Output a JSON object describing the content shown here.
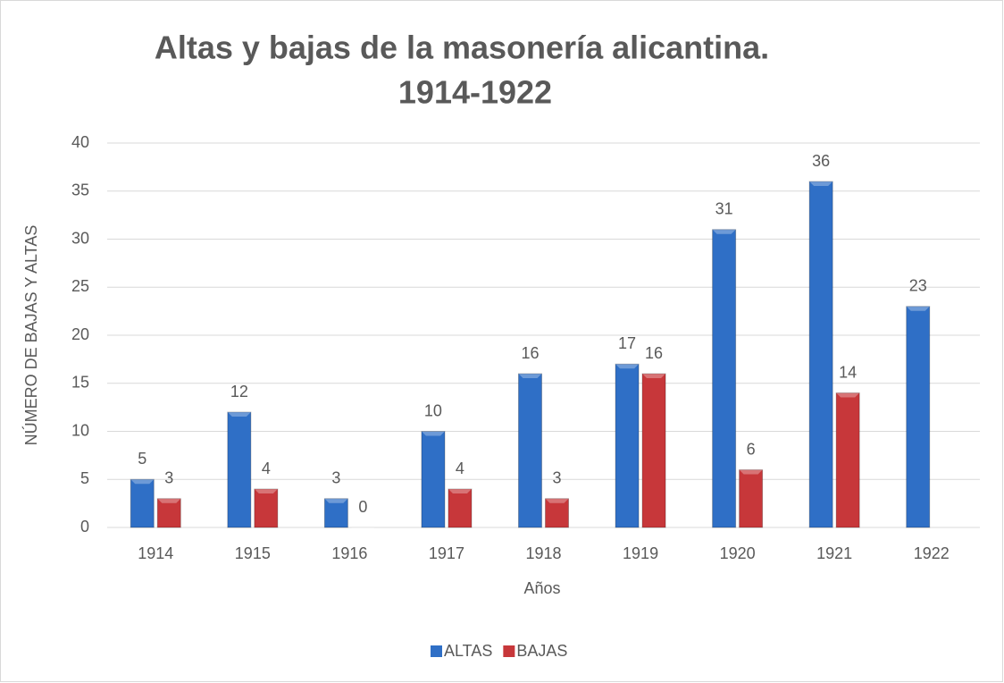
{
  "chart_data": {
    "type": "bar",
    "title": [
      "Altas y bajas de la masonería alicantina.",
      "1914-1922"
    ],
    "x_label": "Años",
    "y_label": "NÚMERO DE BAJAS Y ALTAS",
    "categories": [
      "1914",
      "1915",
      "1916",
      "1917",
      "1918",
      "1919",
      "1920",
      "1921",
      "1922"
    ],
    "series": [
      {
        "name": "ALTAS",
        "color": "#2f6fc6",
        "values": [
          5,
          12,
          3,
          10,
          16,
          17,
          31,
          36,
          23
        ]
      },
      {
        "name": "BAJAS",
        "color": "#c7373a",
        "values": [
          3,
          4,
          0,
          4,
          3,
          16,
          6,
          14,
          null
        ]
      }
    ],
    "ylim": [
      0,
      40
    ],
    "yticks": [
      0,
      5,
      10,
      15,
      20,
      25,
      30,
      35,
      40
    ],
    "grid": true,
    "legend": "bottom"
  }
}
